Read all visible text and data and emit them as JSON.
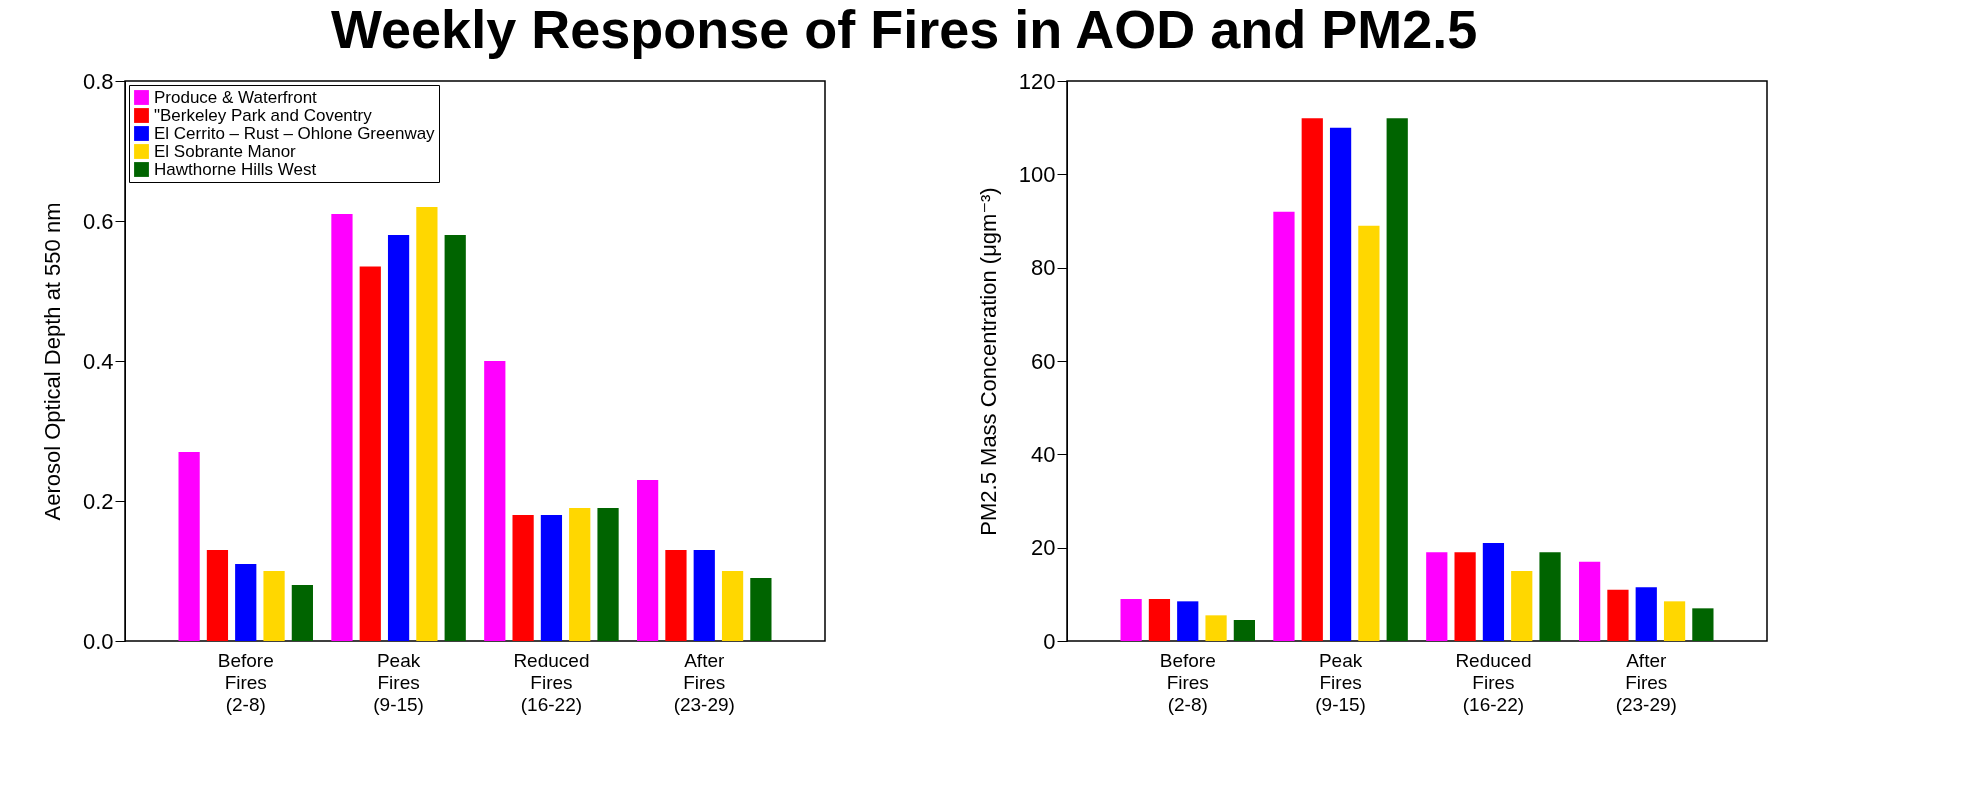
{
  "chart_data": [
    {
      "type": "bar",
      "title": "Weekly Response of Fires in AOD and PM2.5",
      "ylabel": "Aerosol Optical Depth at 550 nm",
      "categories": [
        "Before Fires (2-8)",
        "Peak Fires (9-15)",
        "Reduced Fires (16-22)",
        "After Fires (23-29)"
      ],
      "series": [
        {
          "name": "Produce & Waterfront",
          "color": "#ff00ff",
          "values": [
            0.27,
            0.61,
            0.4,
            0.23
          ]
        },
        {
          "name": "\"Berkeley Park and Coventry",
          "color": "#ff0000",
          "values": [
            0.13,
            0.535,
            0.18,
            0.13
          ]
        },
        {
          "name": "El Cerrito – Rust – Ohlone Greenway",
          "color": "#0000ff",
          "values": [
            0.11,
            0.58,
            0.18,
            0.13
          ]
        },
        {
          "name": "El Sobrante Manor",
          "color": "#ffd700",
          "values": [
            0.1,
            0.62,
            0.19,
            0.1
          ]
        },
        {
          "name": "Hawthorne Hills West",
          "color": "#006400",
          "values": [
            0.08,
            0.58,
            0.19,
            0.09
          ]
        }
      ],
      "ylim": [
        0,
        0.8
      ],
      "yticks": [
        {
          "value": 0,
          "label": "0.0"
        },
        0.2,
        0.4,
        0.6,
        0.8
      ],
      "legend": "top left",
      "grid": false
    },
    {
      "type": "bar",
      "ylabel": "PM2.5 Mass Concentration (μgm⁻³)",
      "categories": [
        "Before Fires (2-8)",
        "Peak Fires (9-15)",
        "Reduced Fires (16-22)",
        "After Fires (23-29)"
      ],
      "series": [
        {
          "color": "#ff00ff",
          "values": [
            9,
            92,
            19,
            17
          ]
        },
        {
          "color": "#ff0000",
          "values": [
            9,
            112,
            19,
            11
          ]
        },
        {
          "color": "#0000ff",
          "values": [
            8.5,
            110,
            21,
            11.5
          ]
        },
        {
          "color": "#ffd700",
          "values": [
            5.5,
            89,
            15,
            8.5
          ]
        },
        {
          "color": "#006400",
          "values": [
            4.5,
            112,
            19,
            7
          ]
        }
      ],
      "ylim": [
        0,
        120
      ],
      "yticks": [
        0,
        20,
        40,
        60,
        80,
        100,
        120
      ],
      "legend": false,
      "grid": false
    }
  ]
}
